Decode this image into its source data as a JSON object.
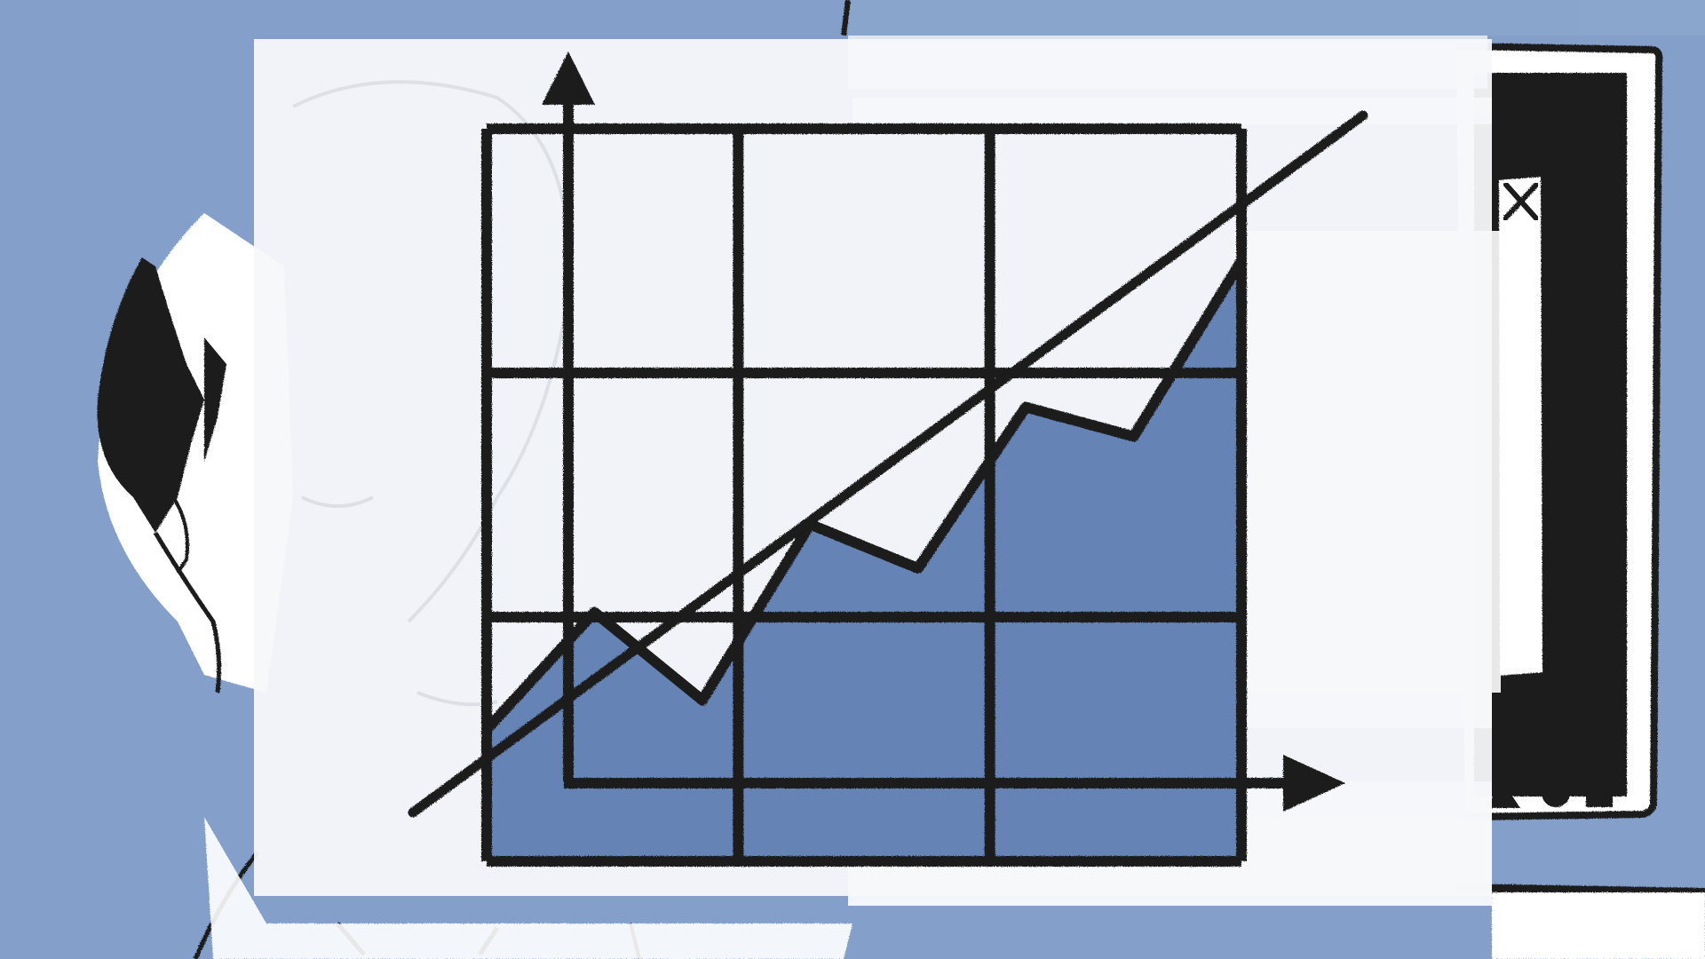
{
  "scene": {
    "background_color": "#839fca",
    "panel_color": "#f7f8fa",
    "chart_fill_color": "#6583b5",
    "ink_color": "#1a1a1a"
  },
  "person": {
    "icon": "person-sketch-icon"
  },
  "monitor": {
    "icon": "monitor-sketch-icon",
    "screen_color": "#1e1e1e",
    "buttons": [
      {
        "icon": "triangle-icon"
      },
      {
        "icon": "circle-icon"
      },
      {
        "icon": "square-icon"
      }
    ]
  },
  "window": {
    "close_icon": "close-icon"
  },
  "graph": {
    "icon": "rising-chart-icon",
    "grid": {
      "columns": 3,
      "rows": 3
    },
    "area_series": [
      0.18,
      0.34,
      0.22,
      0.46,
      0.4,
      0.62,
      0.58,
      0.82
    ],
    "trend": "up"
  }
}
